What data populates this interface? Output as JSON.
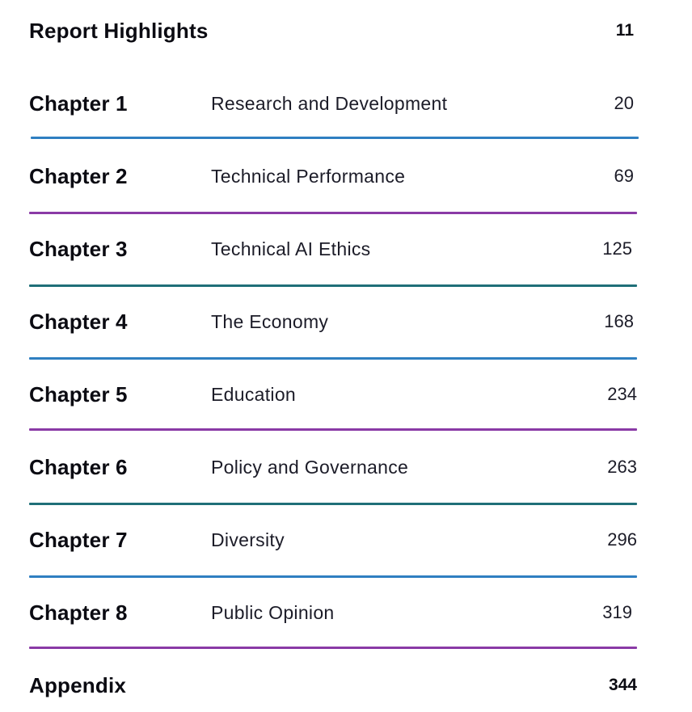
{
  "highlights": {
    "label": "Report Highlights",
    "page": "11"
  },
  "chapters": [
    {
      "label": "Chapter 1",
      "title": "Research and Development",
      "page": "20"
    },
    {
      "label": "Chapter 2",
      "title": "Technical Performance",
      "page": "69"
    },
    {
      "label": "Chapter 3",
      "title": "Technical AI Ethics",
      "page": "125"
    },
    {
      "label": "Chapter 4",
      "title": "The Economy",
      "page": "168"
    },
    {
      "label": "Chapter 5",
      "title": "Education",
      "page": "234"
    },
    {
      "label": "Chapter 6",
      "title": "Policy and Governance",
      "page": "263"
    },
    {
      "label": "Chapter 7",
      "title": "Diversity",
      "page": "296"
    },
    {
      "label": "Chapter 8",
      "title": "Public Opinion",
      "page": "319"
    }
  ],
  "appendix": {
    "label": "Appendix",
    "page": "344"
  },
  "colors": {
    "blue": "#2f7fc1",
    "purple": "#8a3aa6",
    "teal": "#1f6f78"
  }
}
